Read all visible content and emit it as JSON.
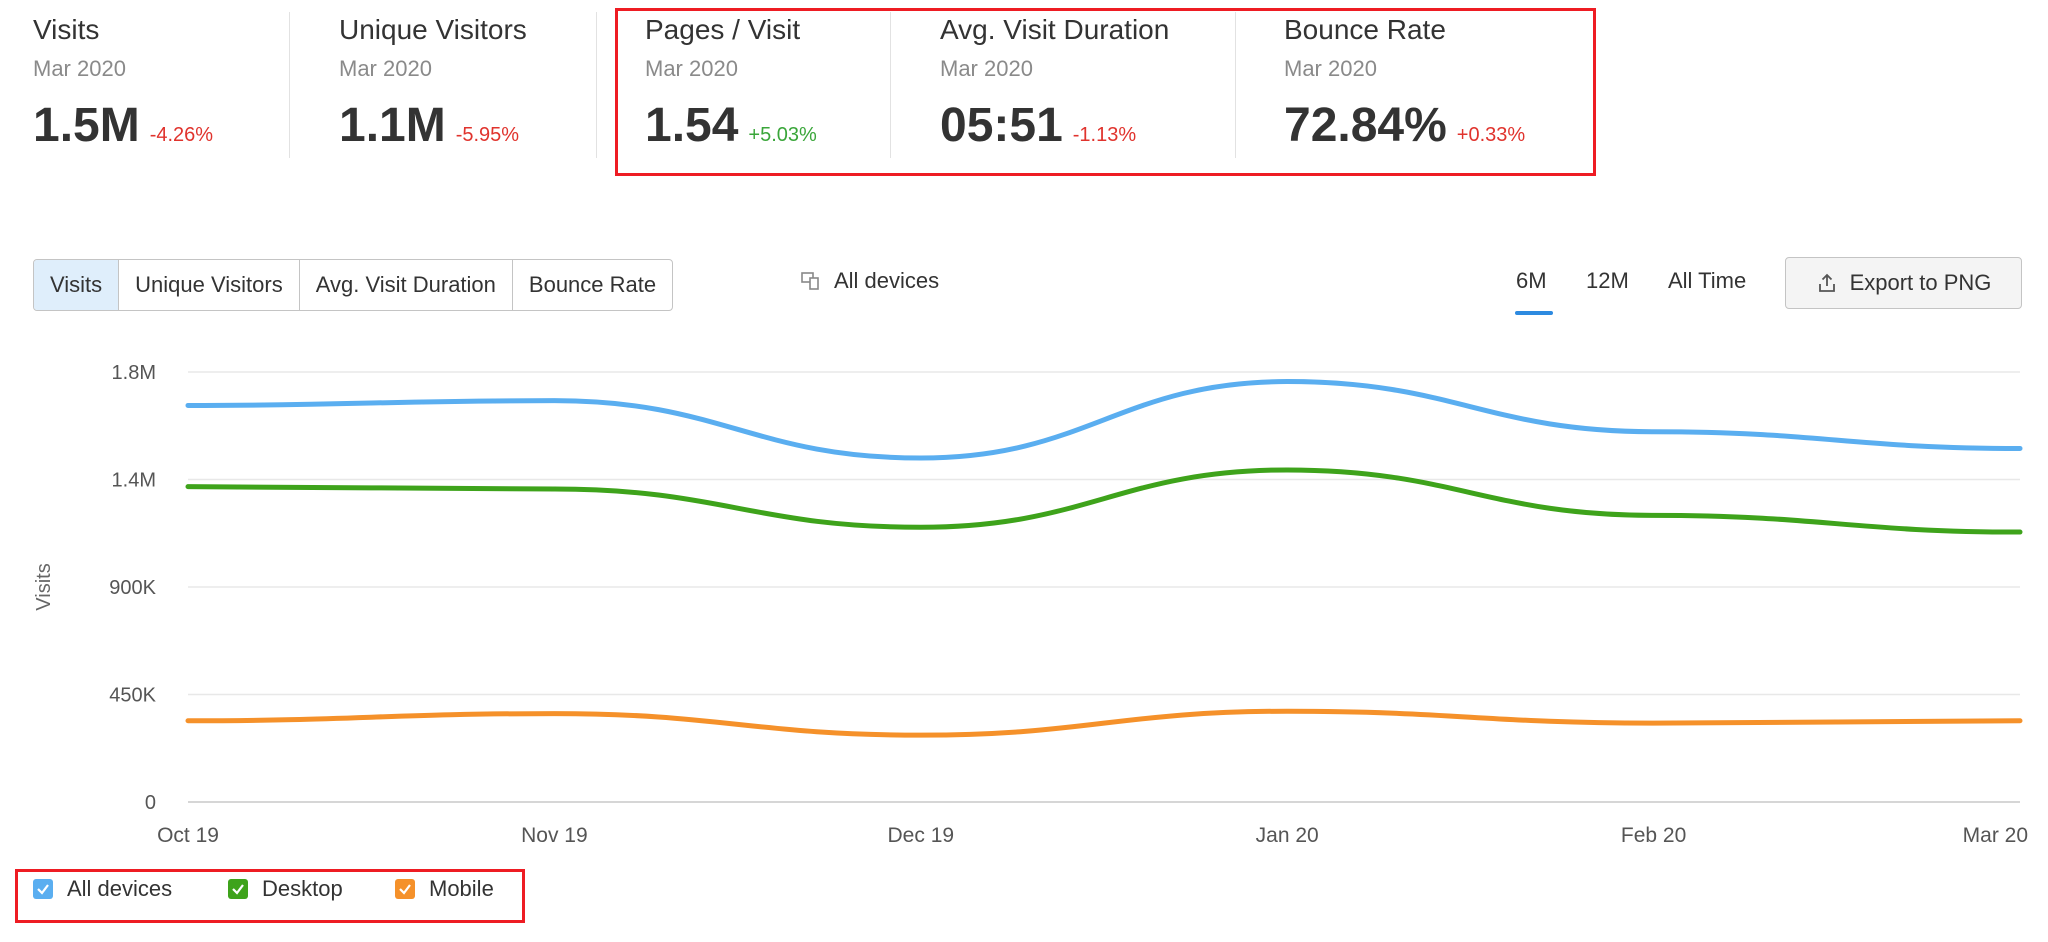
{
  "metrics": [
    {
      "title": "Visits",
      "period": "Mar 2020",
      "value": "1.5M",
      "delta": "-4.26%",
      "trend": "negative"
    },
    {
      "title": "Unique Visitors",
      "period": "Mar 2020",
      "value": "1.1M",
      "delta": "-5.95%",
      "trend": "negative"
    },
    {
      "title": "Pages / Visit",
      "period": "Mar 2020",
      "value": "1.54",
      "delta": "+5.03%",
      "trend": "positive"
    },
    {
      "title": "Avg. Visit Duration",
      "period": "Mar 2020",
      "value": "05:51",
      "delta": "-1.13%",
      "trend": "negative"
    },
    {
      "title": "Bounce Rate",
      "period": "Mar 2020",
      "value": "72.84%",
      "delta": "+0.33%",
      "trend": "negative"
    }
  ],
  "metric_tabs": [
    {
      "label": "Visits",
      "active": true
    },
    {
      "label": "Unique Visitors",
      "active": false
    },
    {
      "label": "Avg. Visit Duration",
      "active": false
    },
    {
      "label": "Bounce Rate",
      "active": false
    }
  ],
  "device_filter": {
    "label": "All devices",
    "icon": "devices-icon"
  },
  "time_ranges": [
    {
      "label": "6M",
      "active": true
    },
    {
      "label": "12M",
      "active": false
    },
    {
      "label": "All Time",
      "active": false
    }
  ],
  "export_button": {
    "label": "Export to PNG",
    "icon": "export-icon"
  },
  "colors": {
    "accent": "#2d8ae0",
    "all_devices": "#5aaef0",
    "desktop": "#3ea31b",
    "mobile": "#f5912a",
    "negative": "#e0332d",
    "positive": "#3aa63a",
    "highlight": "#ee1c23"
  },
  "chart_data": {
    "type": "line",
    "categories": [
      "Oct 19",
      "Nov 19",
      "Dec 19",
      "Jan 20",
      "Feb 20",
      "Mar 20"
    ],
    "ylabel": "Visits",
    "ylim": [
      0,
      1800000
    ],
    "y_ticks": [
      {
        "value": 0,
        "label": "0"
      },
      {
        "value": 450000,
        "label": "450K"
      },
      {
        "value": 900000,
        "label": "900K"
      },
      {
        "value": 1350000,
        "label": "1.4M"
      },
      {
        "value": 1800000,
        "label": "1.8M"
      }
    ],
    "grid": true,
    "legend_position": "bottom-left",
    "series": [
      {
        "name": "All devices",
        "color": "#5aaef0",
        "values": [
          1660000,
          1680000,
          1440000,
          1760000,
          1550000,
          1480000
        ]
      },
      {
        "name": "Desktop",
        "color": "#3ea31b",
        "values": [
          1320000,
          1310000,
          1150000,
          1390000,
          1200000,
          1130000
        ]
      },
      {
        "name": "Mobile",
        "color": "#f5912a",
        "values": [
          340000,
          370000,
          280000,
          380000,
          330000,
          340000
        ]
      }
    ]
  }
}
